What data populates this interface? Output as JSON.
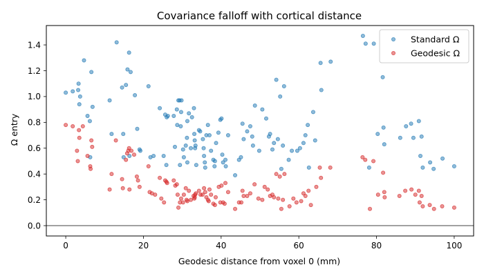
{
  "chart_data": {
    "type": "scatter",
    "title": "Covariance falloff with cortical distance",
    "xlabel": "Geodesic distance from voxel 0 (mm)",
    "ylabel": "Ω entry",
    "xlim": [
      -5,
      105
    ],
    "ylim": [
      -0.08,
      1.55
    ],
    "xticks": [
      0,
      20,
      40,
      60,
      80,
      100
    ],
    "yticks": [
      0.0,
      0.2,
      0.4,
      0.6,
      0.8,
      1.0,
      1.2,
      1.4
    ],
    "xtick_labels": [
      "0",
      "20",
      "40",
      "60",
      "80",
      "100"
    ],
    "ytick_labels": [
      "0.0",
      "0.2",
      "0.4",
      "0.6",
      "0.8",
      "1.0",
      "1.2",
      "1.4"
    ],
    "grid": false,
    "reference_line_y": 0.0,
    "legend_position": "upper right",
    "series": [
      {
        "name": "Standard Ω",
        "color": "#1f77b4",
        "points": [
          [
            0.0,
            1.03
          ],
          [
            1.8,
            1.04
          ],
          [
            3.2,
            1.05
          ],
          [
            3.3,
            1.1
          ],
          [
            3.5,
            0.94
          ],
          [
            3.7,
            1.0
          ],
          [
            4.7,
            1.28
          ],
          [
            5.6,
            0.85
          ],
          [
            6.2,
            0.81
          ],
          [
            6.6,
            1.19
          ],
          [
            6.9,
            0.92
          ],
          [
            6.3,
            0.53
          ],
          [
            11.3,
            0.97
          ],
          [
            11.8,
            0.71
          ],
          [
            13.1,
            1.42
          ],
          [
            14.5,
            1.07
          ],
          [
            14.8,
            0.71
          ],
          [
            14.9,
            0.53
          ],
          [
            15.5,
            1.09
          ],
          [
            15.9,
            1.21
          ],
          [
            16.3,
            1.34
          ],
          [
            16.7,
            1.19
          ],
          [
            16.4,
            0.54
          ],
          [
            17.8,
            1.01
          ],
          [
            18.4,
            0.75
          ],
          [
            19.2,
            0.58
          ],
          [
            19.0,
            0.59
          ],
          [
            21.3,
            1.08
          ],
          [
            21.8,
            0.53
          ],
          [
            22.6,
            0.54
          ],
          [
            24.2,
            0.91
          ],
          [
            25.6,
            0.86
          ],
          [
            25.2,
            0.54
          ],
          [
            25.9,
            0.47
          ],
          [
            26.0,
            0.84
          ],
          [
            26.3,
            0.85
          ],
          [
            27.8,
            0.85
          ],
          [
            28.1,
            0.61
          ],
          [
            28.6,
            0.9
          ],
          [
            28.7,
            0.78
          ],
          [
            29.0,
            0.97
          ],
          [
            29.3,
            0.97
          ],
          [
            29.4,
            0.47
          ],
          [
            29.7,
            0.88
          ],
          [
            29.6,
            0.77
          ],
          [
            29.8,
            0.97
          ],
          [
            30.2,
            0.59
          ],
          [
            30.4,
            0.53
          ],
          [
            30.9,
            0.62
          ],
          [
            31.2,
            0.68
          ],
          [
            31.3,
            0.81
          ],
          [
            31.7,
            0.87
          ],
          [
            31.3,
            0.49
          ],
          [
            32.2,
            0.6
          ],
          [
            32.5,
            0.84
          ],
          [
            33.0,
            0.91
          ],
          [
            33.1,
            0.71
          ],
          [
            33.2,
            0.66
          ],
          [
            33.3,
            0.6
          ],
          [
            33.4,
            0.62
          ],
          [
            33.6,
            0.47
          ],
          [
            34.3,
            0.74
          ],
          [
            34.6,
            0.73
          ],
          [
            35.3,
            0.67
          ],
          [
            35.5,
            0.6
          ],
          [
            35.6,
            0.54
          ],
          [
            35.8,
            0.49
          ],
          [
            35.9,
            0.45
          ],
          [
            36.2,
            0.7
          ],
          [
            36.6,
            0.78
          ],
          [
            37.0,
            0.7
          ],
          [
            37.4,
            0.58
          ],
          [
            38.0,
            0.51
          ],
          [
            38.3,
            0.46
          ],
          [
            38.4,
            0.5
          ],
          [
            38.7,
            0.64
          ],
          [
            39.3,
            0.72
          ],
          [
            39.8,
            0.82
          ],
          [
            40.1,
            0.83
          ],
          [
            40.3,
            0.55
          ],
          [
            40.5,
            0.49
          ],
          [
            41.1,
            0.51
          ],
          [
            41.2,
            0.46
          ],
          [
            41.8,
            0.7
          ],
          [
            43.6,
            0.39
          ],
          [
            44.6,
            0.51
          ],
          [
            45.1,
            0.53
          ],
          [
            45.5,
            0.79
          ],
          [
            45.8,
            0.67
          ],
          [
            46.7,
            0.73
          ],
          [
            47.5,
            0.77
          ],
          [
            48.0,
            0.69
          ],
          [
            48.2,
            0.62
          ],
          [
            48.7,
            0.93
          ],
          [
            49.8,
            0.58
          ],
          [
            50.6,
            0.9
          ],
          [
            51.6,
            0.83
          ],
          [
            52.3,
            0.69
          ],
          [
            52.6,
            0.71
          ],
          [
            53.2,
            0.59
          ],
          [
            53.6,
            0.64
          ],
          [
            54.2,
            1.13
          ],
          [
            54.6,
            0.67
          ],
          [
            55.2,
            1.0
          ],
          [
            55.5,
            0.44
          ],
          [
            55.9,
            0.62
          ],
          [
            56.2,
            1.08
          ],
          [
            57.4,
            0.51
          ],
          [
            58.2,
            0.58
          ],
          [
            59.6,
            0.58
          ],
          [
            60.3,
            0.6
          ],
          [
            61.2,
            0.64
          ],
          [
            61.7,
            0.7
          ],
          [
            62.3,
            0.78
          ],
          [
            62.6,
            0.45
          ],
          [
            63.7,
            0.88
          ],
          [
            64.2,
            0.66
          ],
          [
            65.6,
            1.26
          ],
          [
            65.8,
            1.05
          ],
          [
            68.2,
            1.27
          ],
          [
            76.5,
            1.47
          ],
          [
            77.2,
            1.41
          ],
          [
            78.1,
            0.45
          ],
          [
            79.3,
            1.41
          ],
          [
            80.3,
            0.71
          ],
          [
            81.6,
            1.15
          ],
          [
            81.8,
            0.76
          ],
          [
            82.0,
            0.63
          ],
          [
            86.1,
            0.68
          ],
          [
            87.6,
            0.77
          ],
          [
            88.9,
            0.79
          ],
          [
            89.5,
            0.68
          ],
          [
            90.9,
            0.81
          ],
          [
            91.3,
            0.54
          ],
          [
            91.6,
            0.69
          ],
          [
            91.9,
            0.45
          ],
          [
            93.8,
            0.49
          ],
          [
            94.7,
            0.44
          ],
          [
            97.0,
            0.52
          ],
          [
            100.0,
            0.46
          ]
        ]
      },
      {
        "name": "Geodesic Ω",
        "color": "#d62728",
        "points": [
          [
            0.0,
            0.78
          ],
          [
            1.8,
            0.77
          ],
          [
            2.9,
            0.58
          ],
          [
            3.1,
            0.5
          ],
          [
            3.4,
            0.74
          ],
          [
            3.5,
            0.68
          ],
          [
            4.4,
            0.77
          ],
          [
            5.6,
            0.54
          ],
          [
            6.3,
            0.46
          ],
          [
            6.4,
            0.44
          ],
          [
            6.6,
            0.66
          ],
          [
            6.8,
            0.61
          ],
          [
            11.3,
            0.28
          ],
          [
            11.8,
            0.4
          ],
          [
            12.9,
            0.66
          ],
          [
            14.5,
            0.36
          ],
          [
            14.7,
            0.29
          ],
          [
            15.5,
            0.51
          ],
          [
            15.8,
            0.56
          ],
          [
            16.1,
            0.58
          ],
          [
            16.3,
            0.6
          ],
          [
            16.4,
            0.28
          ],
          [
            16.9,
            0.58
          ],
          [
            17.6,
            0.55
          ],
          [
            18.3,
            0.38
          ],
          [
            18.6,
            0.35
          ],
          [
            19.0,
            0.3
          ],
          [
            21.3,
            0.46
          ],
          [
            21.6,
            0.26
          ],
          [
            22.2,
            0.25
          ],
          [
            23.0,
            0.24
          ],
          [
            24.2,
            0.37
          ],
          [
            24.6,
            0.21
          ],
          [
            25.3,
            0.18
          ],
          [
            25.6,
            0.35
          ],
          [
            25.9,
            0.34
          ],
          [
            26.1,
            0.33
          ],
          [
            27.8,
            0.35
          ],
          [
            28.2,
            0.31
          ],
          [
            28.6,
            0.32
          ],
          [
            28.8,
            0.24
          ],
          [
            29.0,
            0.14
          ],
          [
            29.4,
            0.18
          ],
          [
            29.7,
            0.21
          ],
          [
            30.2,
            0.18
          ],
          [
            30.4,
            0.24
          ],
          [
            30.9,
            0.29
          ],
          [
            31.1,
            0.2
          ],
          [
            31.3,
            0.19
          ],
          [
            31.7,
            0.27
          ],
          [
            32.2,
            0.2
          ],
          [
            32.9,
            0.23
          ],
          [
            33.1,
            0.21
          ],
          [
            33.2,
            0.22
          ],
          [
            33.3,
            0.24
          ],
          [
            33.5,
            0.25
          ],
          [
            34.3,
            0.27
          ],
          [
            34.7,
            0.24
          ],
          [
            35.2,
            0.24
          ],
          [
            35.6,
            0.29
          ],
          [
            35.9,
            0.26
          ],
          [
            36.2,
            0.22
          ],
          [
            36.6,
            0.2
          ],
          [
            36.8,
            0.19
          ],
          [
            37.0,
            0.28
          ],
          [
            37.4,
            0.24
          ],
          [
            38.0,
            0.17
          ],
          [
            38.4,
            0.16
          ],
          [
            38.6,
            0.22
          ],
          [
            39.4,
            0.3
          ],
          [
            39.8,
            0.18
          ],
          [
            40.1,
            0.31
          ],
          [
            40.5,
            0.18
          ],
          [
            40.9,
            0.17
          ],
          [
            41.1,
            0.33
          ],
          [
            41.8,
            0.26
          ],
          [
            43.6,
            0.13
          ],
          [
            44.6,
            0.18
          ],
          [
            45.2,
            0.18
          ],
          [
            45.5,
            0.27
          ],
          [
            45.8,
            0.23
          ],
          [
            46.7,
            0.23
          ],
          [
            47.5,
            0.25
          ],
          [
            48.6,
            0.32
          ],
          [
            49.6,
            0.21
          ],
          [
            50.6,
            0.2
          ],
          [
            51.2,
            0.3
          ],
          [
            52.0,
            0.28
          ],
          [
            52.6,
            0.23
          ],
          [
            53.2,
            0.24
          ],
          [
            53.6,
            0.22
          ],
          [
            54.2,
            0.4
          ],
          [
            54.7,
            0.21
          ],
          [
            55.1,
            0.38
          ],
          [
            55.5,
            0.13
          ],
          [
            55.9,
            0.2
          ],
          [
            56.3,
            0.4
          ],
          [
            57.6,
            0.15
          ],
          [
            58.6,
            0.21
          ],
          [
            59.4,
            0.18
          ],
          [
            60.6,
            0.19
          ],
          [
            61.2,
            0.25
          ],
          [
            61.7,
            0.23
          ],
          [
            62.5,
            0.27
          ],
          [
            63.1,
            0.16
          ],
          [
            64.5,
            0.3
          ],
          [
            65.4,
            0.45
          ],
          [
            65.7,
            0.37
          ],
          [
            68.1,
            0.45
          ],
          [
            76.4,
            0.53
          ],
          [
            77.1,
            0.51
          ],
          [
            78.3,
            0.13
          ],
          [
            79.2,
            0.5
          ],
          [
            80.4,
            0.24
          ],
          [
            81.7,
            0.41
          ],
          [
            82.0,
            0.26
          ],
          [
            82.1,
            0.22
          ],
          [
            85.9,
            0.23
          ],
          [
            87.4,
            0.27
          ],
          [
            89.0,
            0.28
          ],
          [
            90.0,
            0.24
          ],
          [
            90.9,
            0.27
          ],
          [
            91.1,
            0.18
          ],
          [
            91.6,
            0.23
          ],
          [
            91.9,
            0.15
          ],
          [
            93.7,
            0.16
          ],
          [
            94.8,
            0.13
          ],
          [
            96.9,
            0.15
          ],
          [
            100.0,
            0.14
          ]
        ]
      }
    ]
  }
}
